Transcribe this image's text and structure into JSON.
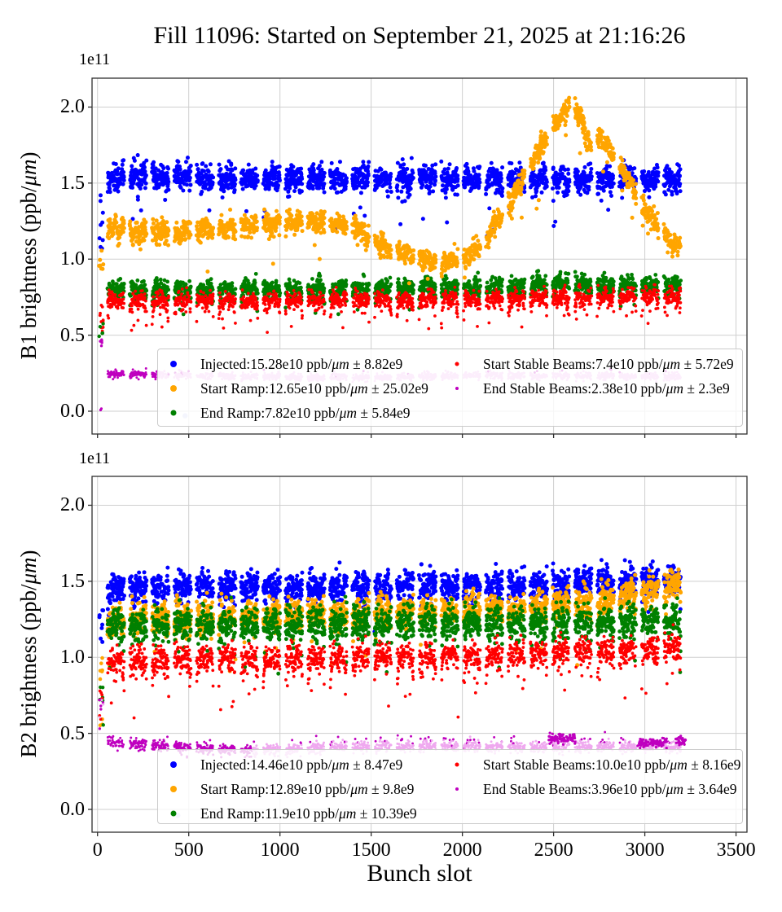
{
  "title": "Fill 11096: Started on September 21, 2025 at 21:16:26",
  "figure": {
    "offset_text": "1e11",
    "xlabel": "Bunch slot",
    "xticks": [
      "0",
      "500",
      "1000",
      "1500",
      "2000",
      "2500",
      "3000",
      "3500"
    ],
    "yticks": [
      "0.0",
      "0.5",
      "1.0",
      "1.5",
      "2.0"
    ],
    "grid": true,
    "grid_color": "#cfcfcf",
    "spine_color": "#2f2f2f"
  },
  "chart_data": [
    {
      "type": "scatter",
      "subplot": "B1",
      "ylabel": {
        "pre": "B1 brightness (ppb/",
        "mu": "μm",
        "post": ")"
      },
      "xlim": [
        -30,
        3560
      ],
      "ylim_1e11": [
        -0.15,
        2.19
      ],
      "trains": {
        "start": 55,
        "width": 92,
        "gap": 30,
        "end": 3225
      },
      "injection_cluster": [
        {
          "color": "#0000ff",
          "y": [
            1.0,
            1.45
          ],
          "n": 9,
          "r": 2.5
        },
        {
          "color": "#ffa500",
          "y": [
            0.93,
            1.13
          ],
          "n": 7,
          "r": 2.5
        },
        {
          "color": "#ff0000",
          "y": [
            0.52,
            0.74
          ],
          "n": 10,
          "r": 1.9
        },
        {
          "color": "#008000",
          "y": [
            0.49,
            0.62
          ],
          "n": 5,
          "r": 2.2
        },
        {
          "color": "#bf00bf",
          "y": [
            0.42,
            0.48
          ],
          "n": 5,
          "r": 1.7
        },
        {
          "color": "#bf00bf",
          "y": [
            0.0,
            0.03
          ],
          "n": 2,
          "r": 1.6
        }
      ],
      "stray_point": {
        "slot": 480,
        "v": -0.03,
        "color": "#c5cbf3",
        "r": 3.2
      },
      "series": [
        {
          "name": "Injected",
          "mean": "15.28e10",
          "error": "8.82e9",
          "color": "#0000ff",
          "legend": {
            "pre": "Injected:15.28e10 ppb/",
            "mu": "μm",
            "post": " ± 8.82e9"
          },
          "marker_r": 2.5,
          "legend_dot": 8,
          "z": 1,
          "gen": {
            "profile": [
              [
                0,
                1.535
              ],
              [
                800,
                1.53
              ],
              [
                1600,
                1.53
              ],
              [
                2400,
                1.525
              ],
              [
                3260,
                1.52
              ]
            ],
            "sigma": 0.042,
            "wave": 0.022,
            "outliers": {
              "p": 0.022,
              "lo": 0.08,
              "hi": 0.3
            }
          }
        },
        {
          "name": "Start Ramp",
          "mean": "12.65e10",
          "error": "25.02e9",
          "color": "#ffa500",
          "legend": {
            "pre": "Start Ramp:12.65e10 ppb/",
            "mu": "μm",
            "post": " ± 25.02e9"
          },
          "marker_r": 2.5,
          "legend_dot": 8,
          "z": 4,
          "gen": {
            "profile": [
              [
                0,
                1.21
              ],
              [
                250,
                1.17
              ],
              [
                500,
                1.185
              ],
              [
                750,
                1.21
              ],
              [
                1000,
                1.235
              ],
              [
                1250,
                1.25
              ],
              [
                1400,
                1.22
              ],
              [
                1500,
                1.13
              ],
              [
                1600,
                1.06
              ],
              [
                1750,
                1.015
              ],
              [
                1900,
                0.975
              ],
              [
                2000,
                1.0
              ],
              [
                2075,
                1.06
              ],
              [
                2150,
                1.17
              ],
              [
                2250,
                1.36
              ],
              [
                2350,
                1.56
              ],
              [
                2450,
                1.78
              ],
              [
                2540,
                1.95
              ],
              [
                2600,
                2.02
              ],
              [
                2650,
                1.93
              ],
              [
                2700,
                1.74
              ],
              [
                2760,
                1.8
              ],
              [
                2820,
                1.7
              ],
              [
                2900,
                1.54
              ],
              [
                3000,
                1.33
              ],
              [
                3100,
                1.16
              ],
              [
                3180,
                1.07
              ],
              [
                3260,
                1.1
              ]
            ],
            "sigma": 0.035,
            "wave": 0.02,
            "outliers": {
              "p": 0.01,
              "lo": 0.06,
              "hi": 0.3
            }
          }
        },
        {
          "name": "End Ramp",
          "mean": "7.82e10",
          "error": "5.84e9",
          "color": "#008000",
          "legend": {
            "pre": "End Ramp:7.82e10 ppb/",
            "mu": "μm",
            "post": " ± 5.84e9"
          },
          "marker_r": 2.4,
          "legend_dot": 7,
          "z": 2,
          "gen": {
            "profile": [
              [
                0,
                0.8
              ],
              [
                1200,
                0.805
              ],
              [
                2200,
                0.815
              ],
              [
                2500,
                0.845
              ],
              [
                2800,
                0.825
              ],
              [
                3260,
                0.82
              ]
            ],
            "sigma": 0.03,
            "wave": 0.015,
            "edge_dip": {
              "depth": 0.1,
              "p": 0.45
            },
            "outliers": {
              "p": 0.008,
              "lo": 0.05,
              "hi": 0.18
            }
          }
        },
        {
          "name": "Start Stable Beams",
          "mean": "7.4e10",
          "error": "5.72e9",
          "color": "#ff0000",
          "legend": {
            "pre": "Start Stable Beams:7.4e10 ppb/",
            "mu": "μm",
            "post": " ± 5.72e9"
          },
          "marker_r": 1.9,
          "legend_dot": 5,
          "z": 3,
          "gen": {
            "profile": [
              [
                0,
                0.725
              ],
              [
                1000,
                0.73
              ],
              [
                2000,
                0.74
              ],
              [
                3260,
                0.76
              ]
            ],
            "sigma": 0.027,
            "wave": 0.015,
            "edge_dip": {
              "depth": 0.15,
              "p": 0.5
            },
            "outliers": {
              "p": 0.012,
              "lo": 0.05,
              "hi": 0.2
            }
          }
        },
        {
          "name": "End Stable Beams",
          "mean": "2.38e10",
          "error": "2.3e9",
          "color": "#efa9ef",
          "legend_color": "#bf00bf",
          "dark_color": "#bf00bf",
          "legend": {
            "pre": "End Stable Beams:2.38e10 ppb/",
            "mu": "μm",
            "post": " ± 2.3e9"
          },
          "marker_r": 1.45,
          "legend_dot": 4,
          "z": 5,
          "gen": {
            "profile": [
              [
                0,
                0.25
              ],
              [
                300,
                0.24
              ],
              [
                700,
                0.23
              ],
              [
                1300,
                0.222
              ],
              [
                2000,
                0.232
              ],
              [
                2600,
                0.236
              ],
              [
                3260,
                0.228
              ]
            ],
            "sigma": 0.012,
            "density": 0.65,
            "dark_until": 330,
            "sporadic_dark": {
              "p": 0.015,
              "dv": 0.018
            }
          }
        }
      ]
    },
    {
      "type": "scatter",
      "subplot": "B2",
      "ylabel": {
        "pre": "B2 brightness (ppb/",
        "mu": "μm",
        "post": ")"
      },
      "xlim": [
        -30,
        3560
      ],
      "ylim_1e11": [
        -0.15,
        2.19
      ],
      "trains": {
        "start": 55,
        "width": 92,
        "gap": 30,
        "end": 3225
      },
      "injection_cluster": [
        {
          "color": "#0000ff",
          "y": [
            1.05,
            1.33
          ],
          "n": 8,
          "r": 2.5
        },
        {
          "color": "#ffa500",
          "y": [
            0.55,
            1.0
          ],
          "n": 9,
          "r": 2.3
        },
        {
          "color": "#008000",
          "y": [
            0.52,
            0.82
          ],
          "n": 6,
          "r": 2.2
        },
        {
          "color": "#ff0000",
          "y": [
            0.58,
            0.78
          ],
          "n": 6,
          "r": 1.9
        },
        {
          "color": "#bf00bf",
          "y": [
            0.52,
            0.73
          ],
          "n": 6,
          "r": 1.7
        },
        {
          "color": "#efa9ef",
          "y": [
            0.6,
            0.72
          ],
          "n": 3,
          "r": 1.5
        }
      ],
      "stray_point": {
        "slot": 440,
        "v": -0.04,
        "color": "#c5cbf3",
        "r": 3.2
      },
      "series": [
        {
          "name": "Injected",
          "mean": "14.46e10",
          "error": "8.47e9",
          "color": "#0000ff",
          "legend": {
            "pre": "Injected:14.46e10 ppb/",
            "mu": "μm",
            "post": " ± 8.47e9"
          },
          "marker_r": 2.5,
          "legend_dot": 8,
          "z": 1,
          "gen": {
            "profile": [
              [
                0,
                1.455
              ],
              [
                600,
                1.46
              ],
              [
                1400,
                1.465
              ],
              [
                2200,
                1.47
              ],
              [
                2800,
                1.5
              ],
              [
                3260,
                1.52
              ]
            ],
            "sigma": 0.048,
            "wave": 0.02,
            "outliers": {
              "p": 0.02,
              "lo": 0.06,
              "hi": 0.22
            }
          }
        },
        {
          "name": "Start Ramp",
          "mean": "12.89e10",
          "error": "9.8e9",
          "color": "#ffa500",
          "legend": {
            "pre": "Start Ramp:12.89e10 ppb/",
            "mu": "μm",
            "post": " ± 9.8e9"
          },
          "marker_r": 2.5,
          "legend_dot": 8,
          "z": 2,
          "gen": {
            "profile": [
              [
                0,
                1.24
              ],
              [
                500,
                1.26
              ],
              [
                1200,
                1.28
              ],
              [
                1800,
                1.3
              ],
              [
                2300,
                1.32
              ],
              [
                2700,
                1.36
              ],
              [
                2950,
                1.42
              ],
              [
                3100,
                1.46
              ],
              [
                3260,
                1.48
              ]
            ],
            "sigma": 0.05,
            "wave": 0.02,
            "edge_dip": {
              "depth": 0.08,
              "p": 0.3
            },
            "outliers": {
              "p": 0.012,
              "lo": 0.05,
              "hi": 0.35
            }
          }
        },
        {
          "name": "End Ramp",
          "mean": "11.9e10",
          "error": "10.39e9",
          "color": "#008000",
          "legend": {
            "pre": "End Ramp:11.9e10 ppb/",
            "mu": "μm",
            "post": " ± 10.39e9"
          },
          "marker_r": 2.4,
          "legend_dot": 7,
          "z": 3,
          "gen": {
            "profile": [
              [
                0,
                1.21
              ],
              [
                800,
                1.22
              ],
              [
                1600,
                1.225
              ],
              [
                2400,
                1.23
              ],
              [
                3260,
                1.24
              ]
            ],
            "sigma": 0.055,
            "wave": 0.02,
            "edge_dip": {
              "depth": 0.12,
              "p": 0.4
            },
            "outliers": {
              "p": 0.01,
              "lo": 0.05,
              "hi": 0.3
            }
          }
        },
        {
          "name": "Start Stable Beams",
          "mean": "10.0e10",
          "error": "8.16e9",
          "color": "#ff0000",
          "legend": {
            "pre": "Start Stable Beams:10.0e10 ppb/",
            "mu": "μm",
            "post": " ± 8.16e9"
          },
          "marker_r": 1.9,
          "legend_dot": 5,
          "z": 4,
          "gen": {
            "profile": [
              [
                0,
                0.965
              ],
              [
                600,
                0.995
              ],
              [
                1200,
                1.0
              ],
              [
                2000,
                1.02
              ],
              [
                2600,
                1.045
              ],
              [
                3260,
                1.06
              ]
            ],
            "sigma": 0.042,
            "wave": 0.018,
            "edge_dip": {
              "depth": 0.2,
              "p": 0.5
            },
            "outliers": {
              "p": 0.02,
              "lo": 0.08,
              "hi": 0.35
            }
          }
        },
        {
          "name": "End Stable Beams",
          "mean": "3.96e10",
          "error": "3.64e9",
          "color": "#efa9ef",
          "legend_color": "#bf00bf",
          "dark_color": "#bf00bf",
          "legend": {
            "pre": "End Stable Beams:3.96e10 ppb/",
            "mu": "μm",
            "post": " ± 3.64e9"
          },
          "marker_r": 1.45,
          "legend_dot": 4,
          "z": 5,
          "gen": {
            "profile": [
              [
                0,
                0.445
              ],
              [
                250,
                0.43
              ],
              [
                500,
                0.405
              ],
              [
                850,
                0.385
              ],
              [
                1300,
                0.41
              ],
              [
                1900,
                0.415
              ],
              [
                2500,
                0.41
              ],
              [
                3000,
                0.415
              ],
              [
                3260,
                0.4
              ]
            ],
            "sigma": 0.018,
            "density": 0.65,
            "dark_until": 850,
            "sporadic_dark": {
              "p": 0.05,
              "dv": 0.045
            },
            "dark_clusters": [
              [
                2470,
                2620,
                0.465
              ],
              [
                2960,
                3120,
                0.44
              ],
              [
                3170,
                3225,
                0.45
              ]
            ]
          }
        }
      ]
    }
  ]
}
